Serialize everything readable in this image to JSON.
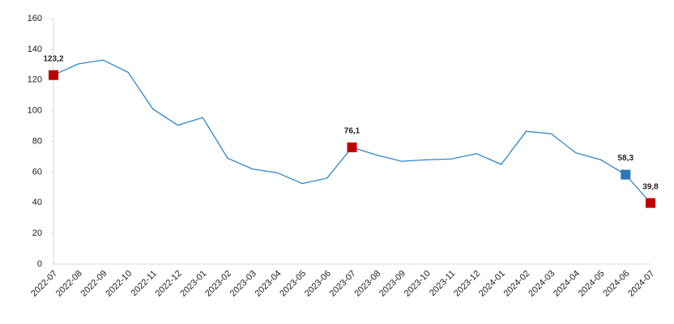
{
  "chart_data": {
    "type": "line",
    "categories": [
      "2022-07",
      "2022-08",
      "2022-09",
      "2022-10",
      "2022-11",
      "2022-12",
      "2023-01",
      "2023-02",
      "2023-03",
      "2023-04",
      "2023-05",
      "2023-06",
      "2023-07",
      "2023-08",
      "2023-09",
      "2023-10",
      "2023-11",
      "2023-12",
      "2024-01",
      "2024-02",
      "2024-03",
      "2024-04",
      "2024-05",
      "2024-06",
      "2024-07"
    ],
    "values": [
      123.2,
      130.5,
      133,
      125,
      101,
      90.5,
      95.5,
      69,
      62,
      59.5,
      52.5,
      56,
      76.1,
      71,
      67,
      68,
      68.5,
      72,
      65,
      86.5,
      85,
      72.5,
      68,
      58.3,
      39.8
    ],
    "value_labels": [
      "123,2",
      null,
      null,
      null,
      null,
      null,
      null,
      null,
      null,
      null,
      null,
      null,
      "76,1",
      null,
      null,
      null,
      null,
      null,
      null,
      null,
      null,
      null,
      null,
      "58,3",
      "39,8"
    ],
    "marker_colors": [
      "#c00000",
      null,
      null,
      null,
      null,
      null,
      null,
      null,
      null,
      null,
      null,
      null,
      "#c00000",
      null,
      null,
      null,
      null,
      null,
      null,
      null,
      null,
      null,
      null,
      "#2e75b6",
      "#c00000"
    ],
    "color": "#2e86c8",
    "ylim": [
      0,
      160
    ],
    "yticks": [
      0,
      20,
      40,
      60,
      80,
      100,
      120,
      140,
      160
    ],
    "grid": false
  }
}
